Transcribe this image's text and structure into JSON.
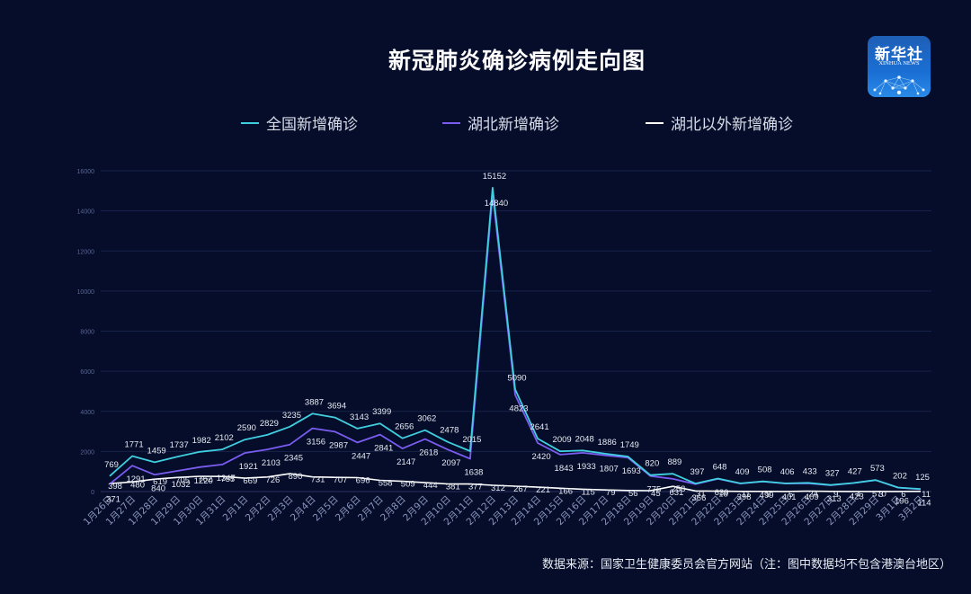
{
  "title": "新冠肺炎确诊病例走向图",
  "logo": {
    "cn": "新华社",
    "en": "XINHUA NEWS"
  },
  "legend": [
    {
      "label": "全国新增确诊",
      "color": "#3fd0e0"
    },
    {
      "label": "湖北新增确诊",
      "color": "#7a5cf0"
    },
    {
      "label": "湖北以外新增确诊",
      "color": "#ffffff"
    }
  ],
  "source": "数据来源：国家卫生健康委员会官方网站（注：图中数据均不包含港澳台地区）",
  "chart_data": {
    "type": "line",
    "title": "新冠肺炎确诊病例走向图",
    "xlabel": "",
    "ylabel": "",
    "ylim": [
      0,
      16000
    ],
    "yticks": [
      0,
      2000,
      4000,
      6000,
      8000,
      10000,
      12000,
      14000,
      16000
    ],
    "grid": true,
    "legend_position": "top",
    "categories": [
      "1月26日",
      "1月27日",
      "1月28日",
      "1月29日",
      "1月30日",
      "1月31日",
      "2月1日",
      "2月2日",
      "2月3日",
      "2月4日",
      "2月5日",
      "2月6日",
      "2月7日",
      "2月8日",
      "2月9日",
      "2月10日",
      "2月11日",
      "2月12日",
      "2月13日",
      "2月14日",
      "2月15日",
      "2月16日",
      "2月17日",
      "2月18日",
      "2月19日",
      "2月20日",
      "2月21日",
      "2月22日",
      "2月23日",
      "2月24日",
      "2月25日",
      "2月26日",
      "2月27日",
      "2月28日",
      "2月29日",
      "3月1日",
      "3月2日"
    ],
    "series": [
      {
        "name": "全国新增确诊",
        "color": "#3fd0e0",
        "values": [
          769,
          1771,
          1459,
          1737,
          1982,
          2102,
          2590,
          2829,
          3235,
          3887,
          3694,
          3143,
          3399,
          2656,
          3062,
          2478,
          2015,
          15152,
          5090,
          2641,
          2009,
          2048,
          1886,
          1749,
          820,
          889,
          397,
          648,
          409,
          508,
          406,
          433,
          327,
          427,
          573,
          202,
          125
        ]
      },
      {
        "name": "湖北新增确诊",
        "color": "#7a5cf0",
        "values": [
          371,
          1291,
          840,
          1032,
          1220,
          1347,
          1921,
          2103,
          2345,
          3156,
          2987,
          2447,
          2841,
          2147,
          2618,
          2097,
          1638,
          14840,
          4823,
          2420,
          1843,
          1933,
          1807,
          1693,
          775,
          631,
          366,
          630,
          398,
          499,
          401,
          409,
          313,
          423,
          570,
          196,
          114
        ]
      },
      {
        "name": "湖北以外新增确诊",
        "color": "#ffffff",
        "values": [
          398,
          480,
          619,
          705,
          762,
          755,
          669,
          726,
          890,
          731,
          707,
          696,
          558,
          509,
          444,
          381,
          377,
          312,
          267,
          221,
          166,
          115,
          79,
          56,
          45,
          258,
          31,
          18,
          11,
          9,
          5,
          24,
          9,
          4,
          3,
          6,
          11
        ]
      }
    ]
  }
}
